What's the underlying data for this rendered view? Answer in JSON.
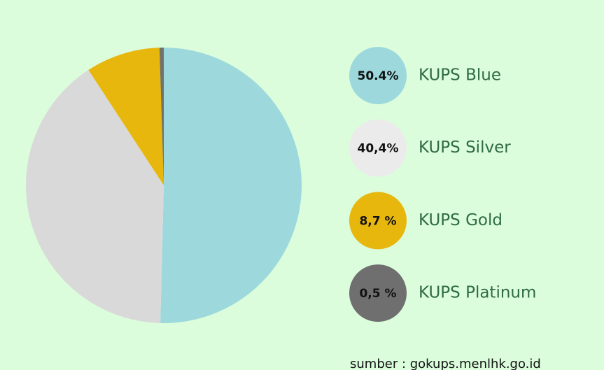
{
  "chart_data": {
    "type": "pie",
    "categories": [
      "KUPS Blue",
      "KUPS Silver",
      "KUPS Gold",
      "KUPS Platinum"
    ],
    "values": [
      50.4,
      40.4,
      8.7,
      0.5
    ],
    "value_labels": [
      "50.4%",
      "40,4%",
      "8,7 %",
      "0,5 %"
    ],
    "colors": [
      "#9dd9dc",
      "#d9d9d9",
      "#e8b70e",
      "#727268"
    ],
    "source": "sumber : gokups.menlhk.go.id"
  }
}
